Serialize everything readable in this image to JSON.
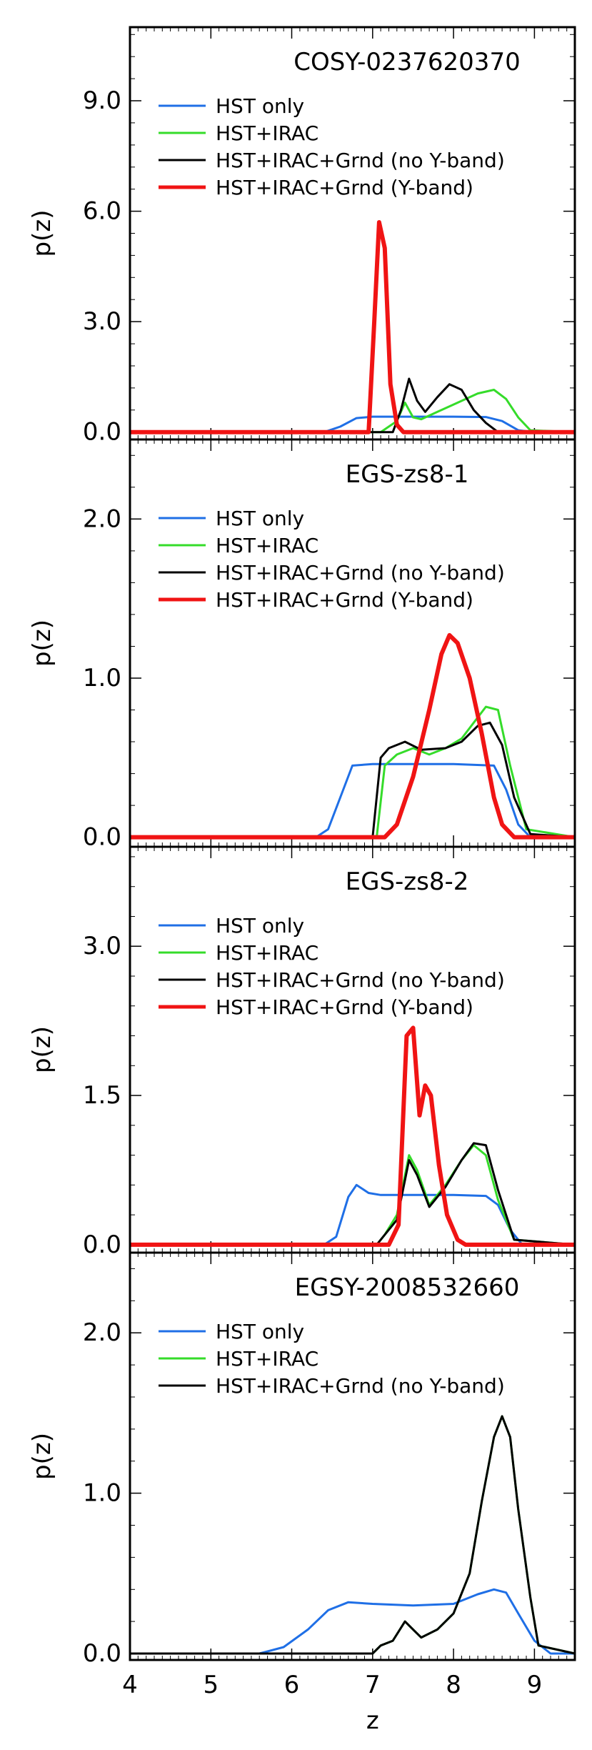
{
  "chart_data": [
    {
      "type": "line",
      "title": "COSY-0237620370",
      "xlabel": "z",
      "ylabel": "p(z)",
      "xlim": [
        4,
        9.5
      ],
      "ylim": [
        -0.2,
        11
      ],
      "yticks": [
        0,
        3,
        6,
        9
      ],
      "ytick_labels": [
        "0.0",
        "3.0",
        "6.0",
        "9.0"
      ],
      "legend": "top-left",
      "series": [
        {
          "name": "HST only",
          "color": "#1f6fe6",
          "width": 2,
          "x": [
            4.0,
            6.4,
            6.6,
            6.8,
            7.0,
            7.5,
            8.0,
            8.4,
            8.6,
            8.8,
            9.0,
            9.5
          ],
          "y": [
            0,
            0,
            0.15,
            0.38,
            0.42,
            0.42,
            0.42,
            0.41,
            0.3,
            0.05,
            0,
            0
          ]
        },
        {
          "name": "HST+IRAC",
          "color": "#35dc2a",
          "width": 2,
          "x": [
            4.0,
            7.1,
            7.3,
            7.4,
            7.5,
            7.6,
            7.8,
            8.0,
            8.3,
            8.5,
            8.65,
            8.8,
            8.95,
            9.5
          ],
          "y": [
            0,
            0,
            0.3,
            0.8,
            0.4,
            0.35,
            0.55,
            0.75,
            1.05,
            1.15,
            0.9,
            0.4,
            0.05,
            0
          ]
        },
        {
          "name": "HST+IRAC+Grnd (no Y-band)",
          "color": "#000000",
          "width": 2,
          "x": [
            4.0,
            7.25,
            7.35,
            7.45,
            7.55,
            7.65,
            7.8,
            7.95,
            8.1,
            8.25,
            8.4,
            8.55,
            9.5
          ],
          "y": [
            0,
            0,
            0.6,
            1.45,
            0.85,
            0.55,
            0.95,
            1.3,
            1.15,
            0.6,
            0.25,
            0,
            0
          ]
        },
        {
          "name": "HST+IRAC+Grnd (Y-band)",
          "color": "#f01414",
          "width": 4,
          "x": [
            4.0,
            6.95,
            7.02,
            7.08,
            7.15,
            7.22,
            7.3,
            7.38,
            9.5
          ],
          "y": [
            0,
            0,
            3.0,
            5.7,
            5.0,
            1.3,
            0.2,
            0,
            0
          ]
        }
      ]
    },
    {
      "type": "line",
      "title": "EGS-zs8-1",
      "xlabel": "z",
      "ylabel": "p(z)",
      "xlim": [
        4,
        9.5
      ],
      "ylim": [
        -0.06,
        2.5
      ],
      "yticks": [
        0,
        1,
        2
      ],
      "ytick_labels": [
        "0.0",
        "1.0",
        "2.0"
      ],
      "legend": "top-left",
      "series": [
        {
          "name": "HST only",
          "color": "#1f6fe6",
          "width": 2,
          "x": [
            4.0,
            6.3,
            6.45,
            6.6,
            6.75,
            7.0,
            7.5,
            8.0,
            8.5,
            8.65,
            8.8,
            8.95,
            9.5
          ],
          "y": [
            0,
            0,
            0.05,
            0.25,
            0.45,
            0.46,
            0.46,
            0.46,
            0.45,
            0.3,
            0.08,
            0,
            0
          ]
        },
        {
          "name": "HST+IRAC",
          "color": "#35dc2a",
          "width": 2,
          "x": [
            4.0,
            7.05,
            7.15,
            7.3,
            7.5,
            7.7,
            7.9,
            8.1,
            8.25,
            8.4,
            8.55,
            8.7,
            8.9,
            9.5
          ],
          "y": [
            0,
            0,
            0.45,
            0.52,
            0.56,
            0.52,
            0.56,
            0.62,
            0.72,
            0.82,
            0.8,
            0.45,
            0.05,
            0
          ]
        },
        {
          "name": "HST+IRAC+Grnd (no Y-band)",
          "color": "#000000",
          "width": 2,
          "x": [
            4.0,
            7.0,
            7.1,
            7.2,
            7.4,
            7.6,
            7.9,
            8.1,
            8.3,
            8.45,
            8.6,
            8.75,
            8.95,
            9.5
          ],
          "y": [
            0,
            0,
            0.5,
            0.56,
            0.6,
            0.55,
            0.56,
            0.6,
            0.7,
            0.72,
            0.58,
            0.25,
            0.02,
            0
          ]
        },
        {
          "name": "HST+IRAC+Grnd (Y-band)",
          "color": "#f01414",
          "width": 4,
          "x": [
            4.0,
            7.15,
            7.3,
            7.5,
            7.7,
            7.85,
            7.95,
            8.05,
            8.2,
            8.35,
            8.5,
            8.6,
            8.75,
            9.5
          ],
          "y": [
            0,
            0,
            0.08,
            0.38,
            0.8,
            1.15,
            1.27,
            1.22,
            1.0,
            0.65,
            0.25,
            0.08,
            0,
            0
          ]
        }
      ]
    },
    {
      "type": "line",
      "title": "EGS-zs8-2",
      "xlabel": "z",
      "ylabel": "p(z)",
      "xlim": [
        4,
        9.5
      ],
      "ylim": [
        -0.08,
        4.0
      ],
      "yticks": [
        0,
        1.5,
        3.0
      ],
      "ytick_labels": [
        "0.0",
        "1.5",
        "3.0"
      ],
      "legend": "top-left",
      "series": [
        {
          "name": "HST only",
          "color": "#1f6fe6",
          "width": 2,
          "x": [
            4.0,
            6.4,
            6.55,
            6.7,
            6.8,
            6.95,
            7.1,
            7.3,
            7.6,
            8.0,
            8.4,
            8.55,
            8.7,
            8.85,
            9.5
          ],
          "y": [
            0,
            0,
            0.08,
            0.48,
            0.6,
            0.52,
            0.5,
            0.5,
            0.5,
            0.5,
            0.49,
            0.4,
            0.15,
            0,
            0
          ]
        },
        {
          "name": "HST+IRAC",
          "color": "#35dc2a",
          "width": 2,
          "x": [
            4.0,
            7.05,
            7.15,
            7.3,
            7.45,
            7.55,
            7.7,
            7.9,
            8.1,
            8.25,
            8.4,
            8.55,
            8.75,
            9.5
          ],
          "y": [
            0,
            0,
            0.1,
            0.3,
            0.9,
            0.75,
            0.4,
            0.6,
            0.85,
            1.0,
            0.9,
            0.45,
            0.05,
            0
          ]
        },
        {
          "name": "HST+IRAC+Grnd (no Y-band)",
          "color": "#000000",
          "width": 2,
          "x": [
            4.0,
            7.05,
            7.15,
            7.3,
            7.45,
            7.55,
            7.7,
            7.9,
            8.1,
            8.25,
            8.4,
            8.55,
            8.75,
            9.5
          ],
          "y": [
            0,
            0,
            0.1,
            0.25,
            0.85,
            0.7,
            0.38,
            0.58,
            0.85,
            1.02,
            1.0,
            0.55,
            0.05,
            0
          ]
        },
        {
          "name": "HST+IRAC+Grnd (Y-band)",
          "color": "#f01414",
          "width": 4,
          "x": [
            4.0,
            7.2,
            7.32,
            7.42,
            7.5,
            7.58,
            7.65,
            7.72,
            7.82,
            7.92,
            8.05,
            8.15,
            9.5
          ],
          "y": [
            0,
            0,
            0.2,
            2.1,
            2.18,
            1.3,
            1.6,
            1.5,
            0.8,
            0.3,
            0.05,
            0,
            0
          ]
        }
      ]
    },
    {
      "type": "line",
      "title": "EGSY-2008532660",
      "xlabel": "z",
      "ylabel": "p(z)",
      "xlim": [
        4,
        9.5
      ],
      "ylim": [
        -0.04,
        2.5
      ],
      "yticks": [
        0,
        1,
        2
      ],
      "ytick_labels": [
        "0.0",
        "1.0",
        "2.0"
      ],
      "xticks": [
        4,
        5,
        6,
        7,
        8,
        9
      ],
      "xtick_labels": [
        "4",
        "5",
        "6",
        "7",
        "8",
        "9"
      ],
      "legend": "top-left",
      "series": [
        {
          "name": "HST only",
          "color": "#1f6fe6",
          "width": 2,
          "x": [
            4.0,
            5.6,
            5.9,
            6.2,
            6.45,
            6.7,
            7.0,
            7.5,
            8.0,
            8.3,
            8.5,
            8.65,
            8.8,
            9.0,
            9.2,
            9.5
          ],
          "y": [
            0,
            0,
            0.04,
            0.15,
            0.27,
            0.32,
            0.31,
            0.3,
            0.31,
            0.37,
            0.4,
            0.38,
            0.25,
            0.08,
            0,
            0
          ]
        },
        {
          "name": "HST+IRAC",
          "color": "#35dc2a",
          "width": 2,
          "x": [
            4.0,
            7.0,
            7.1,
            7.25,
            7.4,
            7.5,
            7.6,
            7.8,
            8.0,
            8.2,
            8.35,
            8.5,
            8.6,
            8.7,
            8.8,
            8.95,
            9.05,
            9.5
          ],
          "y": [
            0,
            0,
            0.05,
            0.08,
            0.2,
            0.15,
            0.1,
            0.15,
            0.25,
            0.5,
            0.95,
            1.35,
            1.48,
            1.35,
            0.9,
            0.35,
            0.05,
            0
          ]
        },
        {
          "name": "HST+IRAC+Grnd (no Y-band)",
          "color": "#000000",
          "width": 2,
          "x": [
            4.0,
            7.0,
            7.1,
            7.25,
            7.4,
            7.5,
            7.6,
            7.8,
            8.0,
            8.2,
            8.35,
            8.5,
            8.6,
            8.7,
            8.8,
            8.95,
            9.05,
            9.5
          ],
          "y": [
            0,
            0,
            0.05,
            0.08,
            0.2,
            0.15,
            0.1,
            0.15,
            0.25,
            0.5,
            0.95,
            1.35,
            1.48,
            1.35,
            0.9,
            0.35,
            0.05,
            0
          ]
        }
      ]
    }
  ]
}
